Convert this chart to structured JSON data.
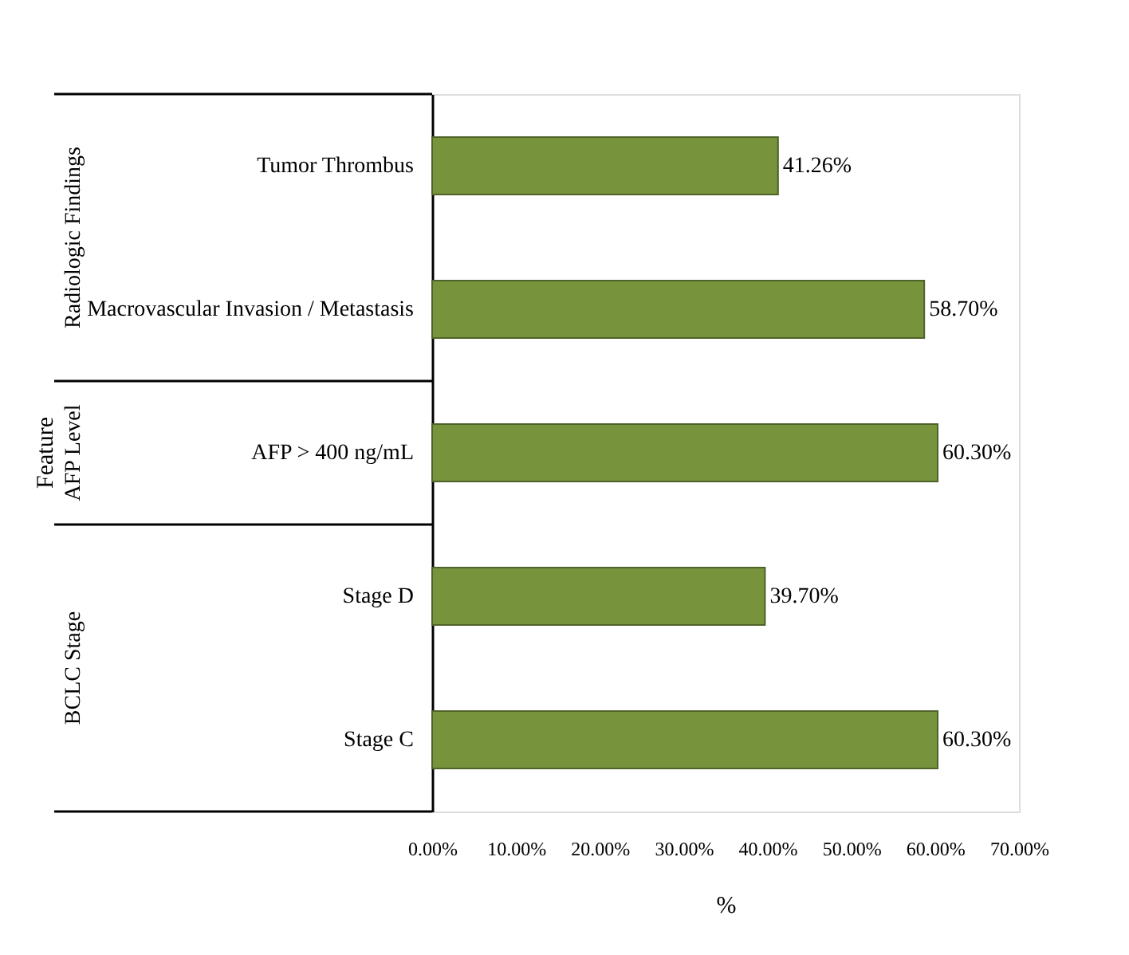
{
  "chart_data": {
    "type": "bar",
    "orientation": "horizontal",
    "ylabel": "Feature",
    "xlabel": "%",
    "categories": [
      "Tumor Thrombus",
      "Macrovascular Invasion / Metastasis",
      "AFP > 400 ng/mL",
      "Stage D",
      "Stage C"
    ],
    "values": [
      41.26,
      58.7,
      60.3,
      39.7,
      60.3
    ],
    "color": "#77933c",
    "value_labels": [
      "41.26%",
      "58.70%",
      "60.30%",
      "39.70%",
      "60.30%"
    ],
    "annotations": [
      "Radiologic Findings",
      "AFP Level",
      "BCLC Stage"
    ],
    "xlim": [
      0,
      70
    ],
    "xticks": [
      {
        "value": 0,
        "label": "0.00%"
      },
      {
        "value": 10,
        "label": "10.00%"
      },
      {
        "value": 20,
        "label": "20.00%"
      },
      {
        "value": 30,
        "label": "30.00%"
      },
      {
        "value": 40,
        "label": "40.00%"
      },
      {
        "value": 50,
        "label": "50.00%"
      },
      {
        "value": 60,
        "label": "60.00%"
      },
      {
        "value": 70,
        "label": "70.00%"
      }
    ],
    "grid": false
  }
}
